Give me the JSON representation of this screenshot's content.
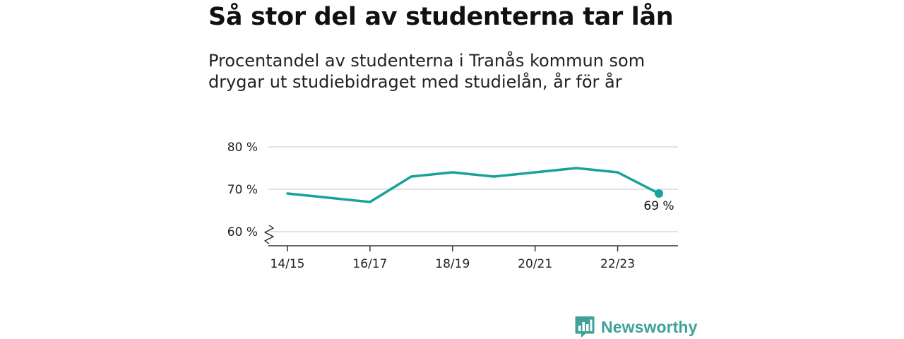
{
  "title": "Så stor del av studenterna tar lån",
  "subtitle": "Procentandel av studenterna i Tranås kommun som drygar ut studiebidraget med studielån, år för år",
  "brand": {
    "name": "Newsworthy",
    "color": "#3fa29a"
  },
  "chart_data": {
    "type": "line",
    "x": [
      "14/15",
      "15/16",
      "16/17",
      "17/18",
      "18/19",
      "19/20",
      "20/21",
      "21/22",
      "22/23",
      "23/24"
    ],
    "series": [
      {
        "values": [
          69,
          68,
          67,
          73,
          74,
          73,
          74,
          75,
          74,
          69
        ],
        "color": "#16a39a"
      }
    ],
    "x_tick_labels": [
      "14/15",
      "16/17",
      "18/19",
      "20/21",
      "22/23"
    ],
    "y_ticks": [
      60,
      70,
      80
    ],
    "y_tick_labels": [
      "60 %",
      "70 %",
      "80 %"
    ],
    "ylim": [
      60,
      80
    ],
    "y_axis_break": true,
    "grid": "horizontal",
    "end_label": "69 %",
    "xlabel": "",
    "ylabel": ""
  }
}
